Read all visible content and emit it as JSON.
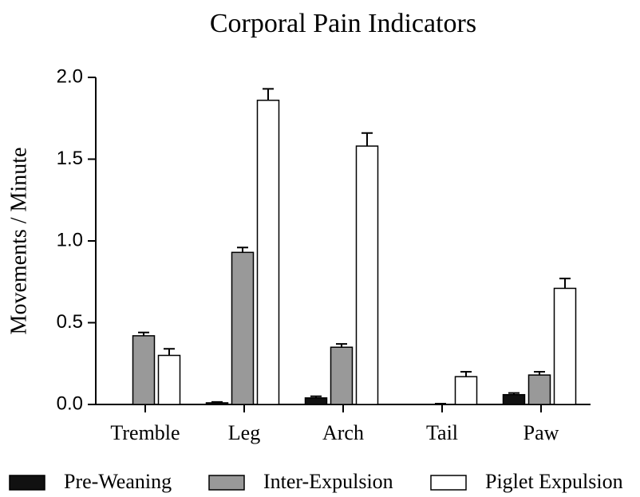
{
  "chart_data": {
    "type": "bar",
    "title": "Corporal Pain Indicators",
    "y_label": "Movements / Minute",
    "categories": [
      "Tremble",
      "Leg",
      "Arch",
      "Tail",
      "Paw"
    ],
    "series": [
      {
        "name": "Pre-Weaning",
        "color": "#111111",
        "values": [
          0,
          0.01,
          0.04,
          0,
          0.06
        ],
        "errors": [
          0,
          0.005,
          0.01,
          0,
          0.01
        ]
      },
      {
        "name": "Inter-Expulsion",
        "color": "#999999",
        "values": [
          0.42,
          0.93,
          0.35,
          0,
          0.18
        ],
        "errors": [
          0.02,
          0.03,
          0.02,
          0.005,
          0.02
        ]
      },
      {
        "name": "Piglet Expulsion",
        "color": "#ffffff",
        "values": [
          0.3,
          1.86,
          1.58,
          0.17,
          0.71
        ],
        "errors": [
          0.04,
          0.07,
          0.08,
          0.03,
          0.06
        ]
      }
    ],
    "ylim": [
      0,
      2.0
    ],
    "yticks": [
      {
        "value": 0,
        "label": "0.0"
      },
      {
        "value": 0.5,
        "label": "0.5"
      },
      {
        "value": 1,
        "label": "1.0"
      },
      {
        "value": 1.5,
        "label": "1.5"
      },
      {
        "value": 2,
        "label": "2.0"
      }
    ],
    "legend": "bottom"
  }
}
